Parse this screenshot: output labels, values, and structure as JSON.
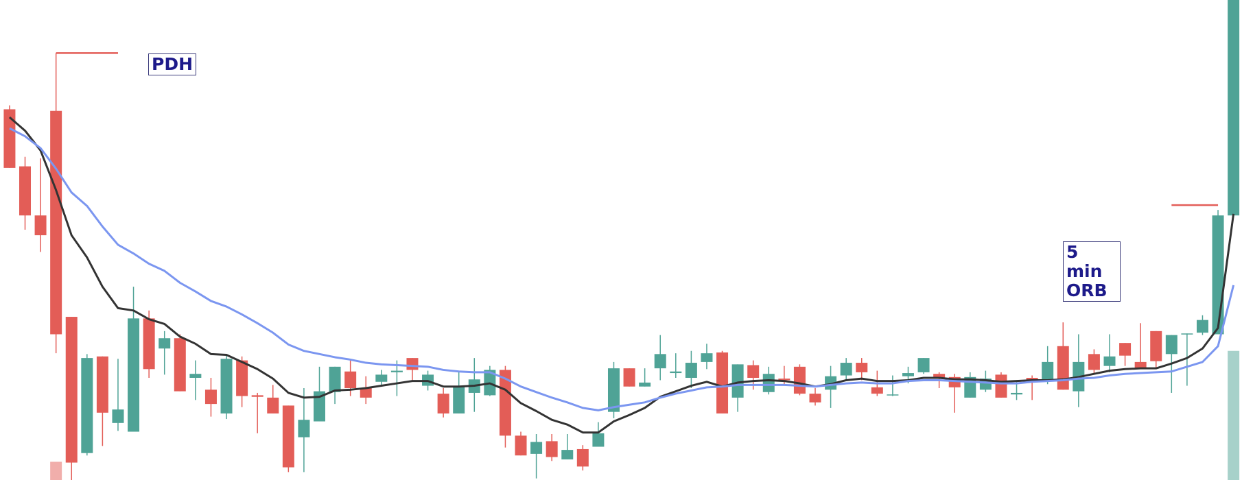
{
  "chart_data": {
    "type": "candlestick",
    "ylim": [
      0,
      606
    ],
    "up_color": "#4fa396",
    "down_color": "#e35d57",
    "open": [
      468,
      396,
      334,
      466,
      206,
      34,
      156,
      72,
      61,
      204,
      166,
      179,
      129,
      114,
      84,
      151,
      107,
      104,
      94,
      54,
      74,
      111,
      137,
      116,
      124,
      136,
      154,
      119,
      109,
      84,
      110,
      107,
      139,
      56,
      33,
      49,
      26,
      39,
      42,
      86,
      141,
      118,
      141,
      135,
      129,
      149,
      161,
      104,
      145,
      111,
      128,
      143,
      109,
      114,
      132,
      148,
      117,
      107,
      131,
      136,
      134,
      130,
      104,
      114,
      133,
      108,
      129,
      127,
      169,
      112,
      159,
      144,
      173,
      149,
      188,
      159,
      184,
      186,
      184,
      334
    ],
    "high": [
      473,
      408,
      406,
      539,
      206,
      159,
      156,
      153,
      244,
      214,
      188,
      184,
      151,
      129,
      157,
      156,
      110,
      120,
      94,
      116,
      143,
      143,
      151,
      131,
      139,
      151,
      154,
      138,
      116,
      136,
      154,
      144,
      144,
      61,
      58,
      58,
      58,
      44,
      73,
      149,
      141,
      141,
      183,
      160,
      163,
      172,
      163,
      146,
      151,
      143,
      144,
      146,
      116,
      144,
      154,
      154,
      138,
      132,
      143,
      154,
      136,
      134,
      136,
      138,
      136,
      126,
      132,
      169,
      199,
      184,
      165,
      184,
      173,
      198,
      188,
      183,
      185,
      208,
      341,
      606
    ],
    "low": [
      394,
      316,
      288,
      160,
      0,
      31,
      43,
      62,
      61,
      129,
      133,
      112,
      101,
      80,
      77,
      92,
      59,
      84,
      10,
      10,
      74,
      96,
      106,
      96,
      119,
      106,
      126,
      113,
      79,
      84,
      86,
      106,
      41,
      31,
      2,
      24,
      26,
      12,
      42,
      78,
      118,
      118,
      126,
      129,
      116,
      140,
      84,
      86,
      114,
      108,
      121,
      107,
      94,
      91,
      126,
      126,
      106,
      106,
      122,
      134,
      116,
      85,
      104,
      111,
      104,
      101,
      101,
      121,
      114,
      92,
      134,
      136,
      144,
      140,
      140,
      110,
      119,
      183,
      184,
      334
    ],
    "close": [
      394,
      334,
      309,
      184,
      22,
      154,
      85,
      89,
      204,
      140,
      179,
      112,
      134,
      96,
      153,
      106,
      105,
      84,
      16,
      76,
      112,
      143,
      116,
      104,
      133,
      138,
      139,
      133,
      84,
      118,
      127,
      139,
      56,
      31,
      48,
      29,
      38,
      17,
      59,
      141,
      118,
      123,
      159,
      137,
      148,
      160,
      84,
      146,
      129,
      134,
      126,
      109,
      98,
      131,
      148,
      136,
      109,
      108,
      135,
      154,
      129,
      117,
      130,
      128,
      104,
      110,
      126,
      149,
      114,
      149,
      139,
      156,
      157,
      140,
      150,
      183,
      185,
      202,
      334,
      606
    ],
    "volume": [
      null,
      null,
      null,
      23,
      null,
      null,
      null,
      null,
      null,
      null,
      null,
      null,
      null,
      null,
      null,
      null,
      null,
      null,
      null,
      null,
      null,
      null,
      null,
      null,
      null,
      null,
      null,
      null,
      null,
      null,
      null,
      null,
      null,
      null,
      null,
      null,
      null,
      null,
      null,
      null,
      null,
      null,
      null,
      null,
      null,
      null,
      null,
      null,
      null,
      null,
      null,
      null,
      null,
      null,
      null,
      null,
      null,
      null,
      null,
      null,
      null,
      null,
      null,
      null,
      null,
      null,
      null,
      null,
      null,
      null,
      null,
      null,
      null,
      null,
      null,
      null,
      null,
      null,
      null,
      163
    ],
    "series": [
      {
        "color": "#333333",
        "values": [
          458,
          441,
          416,
          366,
          309,
          281,
          244,
          217,
          214,
          203,
          197,
          181,
          172,
          159,
          158,
          149,
          140,
          128,
          110,
          104,
          105,
          113,
          114,
          116,
          119,
          122,
          125,
          125,
          118,
          118,
          119,
          122,
          114,
          97,
          87,
          76,
          70,
          60,
          60,
          74,
          82,
          91,
          105,
          112,
          119,
          124,
          118,
          123,
          125,
          126,
          125,
          122,
          118,
          121,
          126,
          128,
          125,
          125,
          126,
          129,
          129,
          127,
          127,
          126,
          124,
          125,
          126,
          126,
          127,
          130,
          134,
          138,
          140,
          141,
          141,
          147,
          154,
          166,
          192,
          336
        ]
      },
      {
        "color": "#7b96f0",
        "values": [
          444,
          434,
          419,
          393,
          363,
          346,
          320,
          297,
          286,
          273,
          264,
          249,
          238,
          226,
          219,
          209,
          198,
          186,
          171,
          163,
          159,
          155,
          152,
          148,
          146,
          145,
          144,
          143,
          139,
          137,
          136,
          136,
          128,
          118,
          111,
          104,
          98,
          91,
          88,
          92,
          95,
          98,
          104,
          109,
          113,
          117,
          118,
          120,
          120,
          120,
          120,
          119,
          118,
          120,
          122,
          123,
          122,
          122,
          125,
          126,
          126,
          125,
          124,
          123,
          122,
          122,
          124,
          125,
          126,
          128,
          129,
          132,
          134,
          135,
          136,
          137,
          143,
          149,
          169,
          246
        ]
      }
    ],
    "levels": [
      {
        "value": 539,
        "start": 3,
        "end": 7,
        "color": "#e35d57",
        "label": "PDH"
      },
      {
        "value": 347,
        "start": 75,
        "end": 78,
        "color": "#e35d57",
        "label": "5 min ORB"
      }
    ]
  }
}
